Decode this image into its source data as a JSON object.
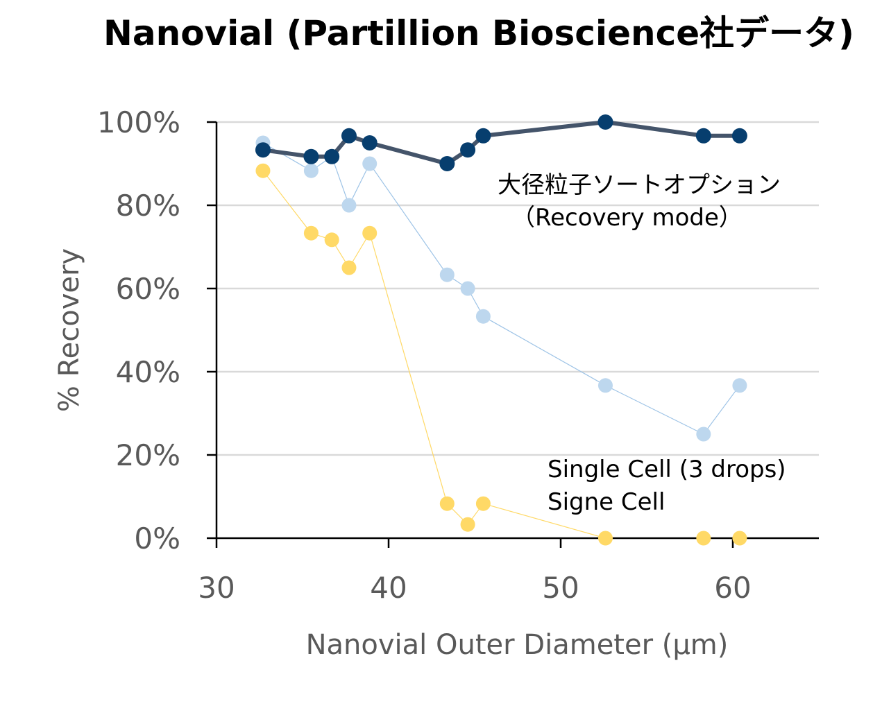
{
  "chart_data": {
    "type": "scatter",
    "title": "Nanovial (Partillion Bioscience社データ)",
    "xlabel": "Nanovial Outer Diameter (µm)",
    "ylabel": "% Recovery",
    "xlim": [
      30,
      65
    ],
    "ylim": [
      0,
      100
    ],
    "x_ticks": [
      {
        "value": 30,
        "label": "30"
      },
      {
        "value": 40,
        "label": "40"
      },
      {
        "value": 50,
        "label": "50"
      },
      {
        "value": 60,
        "label": "60"
      }
    ],
    "y_ticks": [
      {
        "value": 0,
        "label": "0%"
      },
      {
        "value": 20,
        "label": "20%"
      },
      {
        "value": 40,
        "label": "40%"
      },
      {
        "value": 60,
        "label": "60%"
      },
      {
        "value": 80,
        "label": "80%"
      },
      {
        "value": 100,
        "label": "100%"
      }
    ],
    "grid": "horizontal",
    "annotations": [
      {
        "lines": [
          "大径粒子ソートオプション",
          "（Recovery mode）"
        ],
        "series": 0
      },
      {
        "lines": [
          "Single Cell (3 drops)"
        ],
        "series": 1
      },
      {
        "lines": [
          "Signe Cell"
        ],
        "series": 2
      }
    ],
    "series": [
      {
        "color": "#073e6e",
        "line_color": "#44546a",
        "points": [
          {
            "x": 32.7,
            "y": 93.3
          },
          {
            "x": 35.5,
            "y": 91.7
          },
          {
            "x": 36.7,
            "y": 91.7
          },
          {
            "x": 37.7,
            "y": 96.7
          },
          {
            "x": 38.9,
            "y": 95.0
          },
          {
            "x": 43.4,
            "y": 90.0
          },
          {
            "x": 44.6,
            "y": 93.3
          },
          {
            "x": 45.5,
            "y": 96.7
          },
          {
            "x": 52.6,
            "y": 100.0
          },
          {
            "x": 58.3,
            "y": 96.7
          },
          {
            "x": 60.4,
            "y": 96.7
          }
        ]
      },
      {
        "color": "#bdd7ee",
        "line_color": "#9dc3e6",
        "points": [
          {
            "x": 32.7,
            "y": 95.0
          },
          {
            "x": 35.5,
            "y": 88.3
          },
          {
            "x": 36.7,
            "y": 91.7
          },
          {
            "x": 37.7,
            "y": 80.0
          },
          {
            "x": 38.9,
            "y": 90.0
          },
          {
            "x": 43.4,
            "y": 63.3
          },
          {
            "x": 44.6,
            "y": 60.0
          },
          {
            "x": 45.5,
            "y": 53.3
          },
          {
            "x": 52.6,
            "y": 36.7
          },
          {
            "x": 58.3,
            "y": 25.0
          },
          {
            "x": 60.4,
            "y": 36.7
          }
        ]
      },
      {
        "color": "#ffd966",
        "line_color": "#ffd966",
        "points": [
          {
            "x": 32.7,
            "y": 88.3
          },
          {
            "x": 35.5,
            "y": 73.3
          },
          {
            "x": 36.7,
            "y": 71.7
          },
          {
            "x": 37.7,
            "y": 65.0
          },
          {
            "x": 38.9,
            "y": 73.3
          },
          {
            "x": 43.4,
            "y": 8.3
          },
          {
            "x": 44.6,
            "y": 3.3
          },
          {
            "x": 45.5,
            "y": 8.3
          },
          {
            "x": 52.6,
            "y": 0.0
          },
          {
            "x": 58.3,
            "y": 0.0
          },
          {
            "x": 60.4,
            "y": 0.0
          }
        ]
      }
    ]
  }
}
